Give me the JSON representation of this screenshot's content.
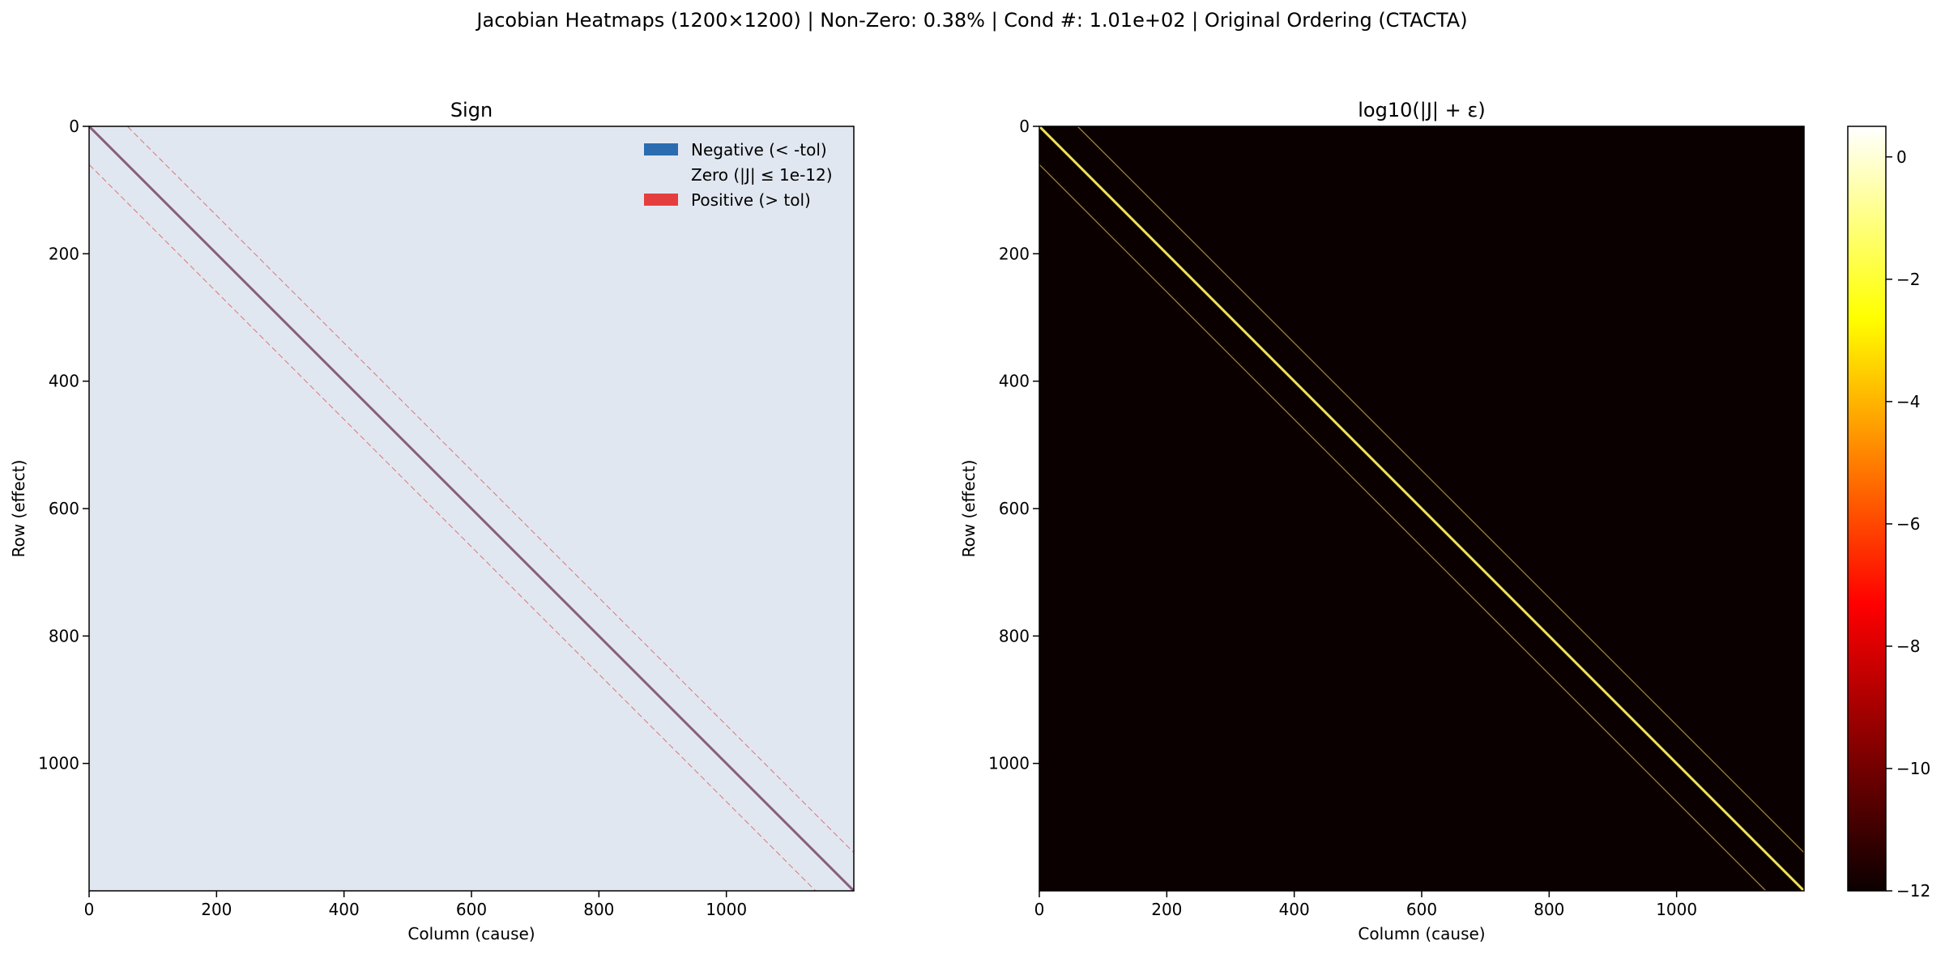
{
  "suptitle": "Jacobian Heatmaps (1200×1200) | Non-Zero: 0.38% | Cond #: 1.01e+02 | Original Ordering (CTACTA)",
  "chart_data": [
    {
      "type": "heatmap",
      "title": "Sign",
      "xlabel": "Column (cause)",
      "ylabel": "Row (effect)",
      "xlim": [
        0,
        1200
      ],
      "ylim": [
        1200,
        0
      ],
      "xticks": [
        0,
        200,
        400,
        600,
        800,
        1000
      ],
      "yticks": [
        0,
        200,
        400,
        600,
        800,
        1000
      ],
      "matrix_size": 1200,
      "bands": [
        {
          "offset": 0,
          "description": "main diagonal",
          "sign": "mixed"
        },
        {
          "offset": 60,
          "description": "upper off-diagonal",
          "sign": "positive"
        },
        {
          "offset": -60,
          "description": "lower off-diagonal",
          "sign": "positive"
        }
      ],
      "colors": {
        "negative": "#2b6cb0",
        "zero": "#e1e7f0",
        "positive": "#e53e3e"
      },
      "legend": {
        "placement": "upper right",
        "entries": [
          {
            "label": "Negative (< -tol)",
            "color": "#2b6cb0"
          },
          {
            "label": "Zero (|J| ≤ 1e-12)",
            "color": "#e1e7f0"
          },
          {
            "label": "Positive (> tol)",
            "color": "#e53e3e"
          }
        ]
      }
    },
    {
      "type": "heatmap",
      "title": "log10(|J| + ε)",
      "xlabel": "Column (cause)",
      "ylabel": "Row (effect)",
      "xlim": [
        0,
        1200
      ],
      "ylim": [
        1200,
        0
      ],
      "xticks": [
        0,
        200,
        400,
        600,
        800,
        1000
      ],
      "yticks": [
        0,
        200,
        400,
        600,
        800,
        1000
      ],
      "matrix_size": 1200,
      "colormap": "hot",
      "background_value": -12,
      "bands": [
        {
          "offset": 0,
          "description": "main diagonal",
          "approx_log10": -0.5
        },
        {
          "offset": 60,
          "description": "upper off-diagonal",
          "approx_log10": -2
        },
        {
          "offset": -60,
          "description": "lower off-diagonal",
          "approx_log10": -2
        }
      ],
      "colorbar": {
        "range": [
          -12,
          0.5
        ],
        "ticks": [
          0,
          -2,
          -4,
          -6,
          -8,
          -10,
          -12
        ],
        "tick_labels": [
          "0",
          "−2",
          "−4",
          "−6",
          "−8",
          "−10",
          "−12"
        ]
      }
    }
  ]
}
